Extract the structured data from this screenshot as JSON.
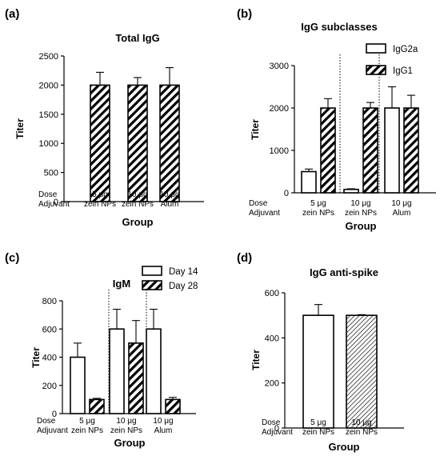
{
  "chart_data": [
    {
      "id": "a",
      "panel_label": "(a)",
      "type": "bar",
      "title": "Total IgG",
      "ylabel": "Titer",
      "xlabel": "Group",
      "ylim": [
        0,
        2500
      ],
      "yticks": [
        "0",
        "500",
        "1000",
        "1500",
        "2000",
        "2500"
      ],
      "row_labels": [
        "Dose",
        "Adjuvant"
      ],
      "groups": [
        {
          "dose": "5 μg",
          "adjuvant": "zein NPs"
        },
        {
          "dose": "10 μg",
          "adjuvant": "zein NPs"
        },
        {
          "dose": "10 μg",
          "adjuvant": "Alum"
        }
      ],
      "series": [
        {
          "style": "hatched",
          "values": [
            2000,
            2000,
            2000
          ],
          "errors": [
            220,
            130,
            300
          ]
        }
      ]
    },
    {
      "id": "b",
      "panel_label": "(b)",
      "type": "bar",
      "title": "IgG subclasses",
      "ylabel": "Titer",
      "xlabel": "Group",
      "ylim": [
        0,
        3000
      ],
      "yticks": [
        "0",
        "1000",
        "2000",
        "3000"
      ],
      "row_labels": [
        "Dose",
        "Adjuvant"
      ],
      "groups": [
        {
          "dose": "5 μg",
          "adjuvant": "zein NPs"
        },
        {
          "dose": "10 μg",
          "adjuvant": "zein NPs"
        },
        {
          "dose": "10 μg",
          "adjuvant": "Alum"
        }
      ],
      "legend_position": "top-right",
      "series": [
        {
          "name": "IgG2a",
          "style": "open",
          "values": [
            500,
            80,
            2000
          ],
          "errors": [
            60,
            15,
            500
          ]
        },
        {
          "name": "IgG1",
          "style": "hatched",
          "values": [
            2000,
            2000,
            2000
          ],
          "errors": [
            220,
            130,
            300
          ]
        }
      ]
    },
    {
      "id": "c",
      "panel_label": "(c)",
      "type": "bar",
      "title": "IgM",
      "ylabel": "Titer",
      "xlabel": "Group",
      "ylim": [
        0,
        800
      ],
      "yticks": [
        "0",
        "200",
        "400",
        "600",
        "800"
      ],
      "row_labels": [
        "Dose",
        "Adjuvant"
      ],
      "groups": [
        {
          "dose": "5 μg",
          "adjuvant": "zein NPs"
        },
        {
          "dose": "10 μg",
          "adjuvant": "zein NPs"
        },
        {
          "dose": "10 μg",
          "adjuvant": "Alum"
        }
      ],
      "legend_position": "top-right",
      "series": [
        {
          "name": "Day 14",
          "style": "open",
          "values": [
            400,
            600,
            600
          ],
          "errors": [
            100,
            140,
            140
          ]
        },
        {
          "name": "Day 28",
          "style": "hatched",
          "values": [
            100,
            500,
            100
          ],
          "errors": [
            8,
            160,
            15
          ]
        }
      ]
    },
    {
      "id": "d",
      "panel_label": "(d)",
      "type": "bar",
      "title": "IgG anti-spike",
      "ylabel": "Titer",
      "xlabel": "Group",
      "ylim": [
        0,
        600
      ],
      "yticks": [
        "0",
        "200",
        "400",
        "600"
      ],
      "row_labels": [
        "Dose",
        "Adjuvant"
      ],
      "groups": [
        {
          "dose": "5 μg",
          "adjuvant": "zein NPs"
        },
        {
          "dose": "10 μg",
          "adjuvant": "zein NPs"
        }
      ],
      "series": [
        {
          "style": "mixed",
          "styles": [
            "open",
            "fine-hatched"
          ],
          "values": [
            500,
            500
          ],
          "errors": [
            48,
            3
          ]
        }
      ]
    }
  ]
}
